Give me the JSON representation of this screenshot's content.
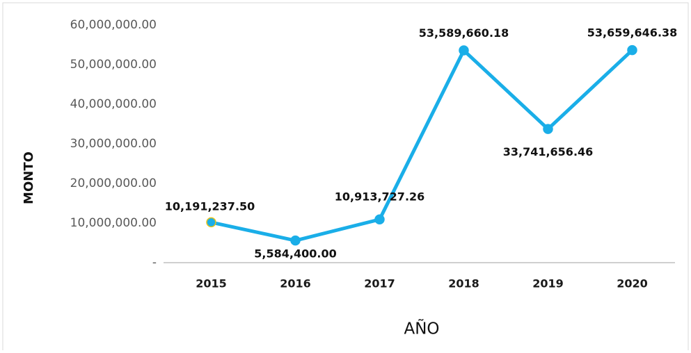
{
  "chart_data": {
    "type": "line",
    "categories": [
      "2015",
      "2016",
      "2017",
      "2018",
      "2019",
      "2020"
    ],
    "series": [
      {
        "color": "#1aaee8",
        "values": [
          10191237.5,
          5584400.0,
          10913727.26,
          53589660.18,
          33741656.46,
          53659646.38
        ],
        "value_labels": [
          "10,191,237.50",
          "5,584,400.00",
          "10,913,727.26",
          "53,589,660.18",
          "33,741,656.46",
          "53,659,646.38"
        ]
      }
    ],
    "ylim": [
      0,
      60000000
    ],
    "yticks": [
      {
        "value": 0,
        "label": "-"
      },
      {
        "value": 10000000,
        "label": "10,000,000.00"
      },
      {
        "value": 20000000,
        "label": "20,000,000.00"
      },
      {
        "value": 30000000,
        "label": "30,000,000.00"
      },
      {
        "value": 40000000,
        "label": "40,000,000.00"
      },
      {
        "value": 50000000,
        "label": "50,000,000.00"
      },
      {
        "value": 60000000,
        "label": "60,000,000.00"
      }
    ],
    "ylabel": "MONTO",
    "xlabel": "AÑO"
  }
}
